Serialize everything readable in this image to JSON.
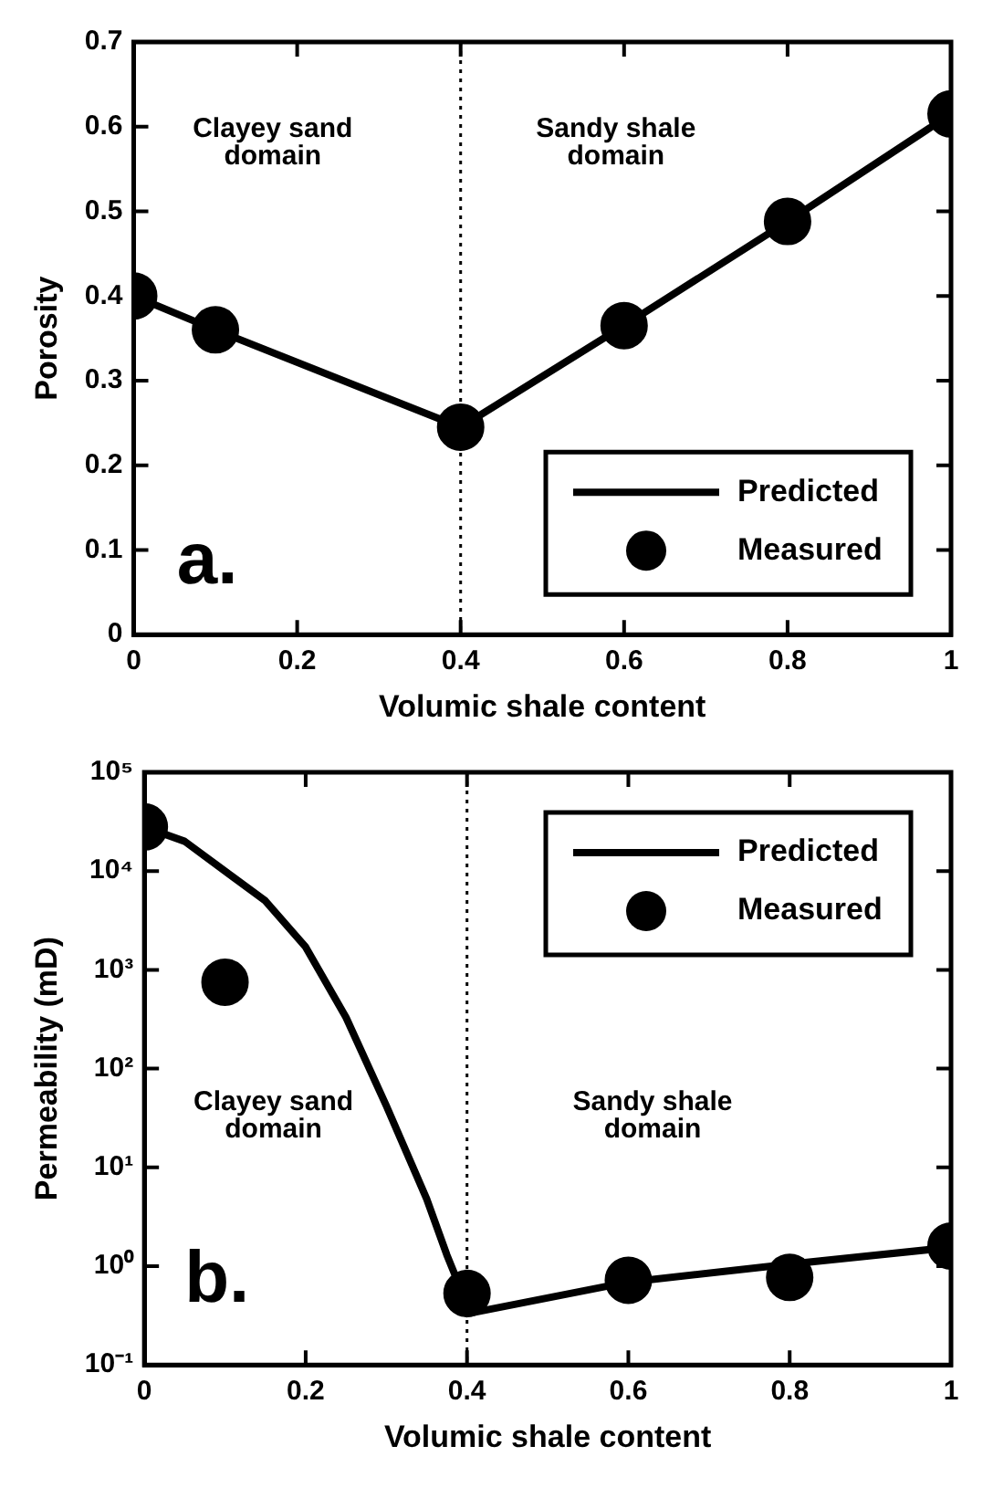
{
  "chart_data": [
    {
      "type": "line",
      "xlabel": "Volumic shale content",
      "ylabel": "Porosity",
      "xlim": [
        0,
        1
      ],
      "xticks": [
        0,
        0.2,
        0.4,
        0.6,
        0.8,
        1
      ],
      "ylim": [
        0,
        0.7
      ],
      "yticks": [
        0,
        0.1,
        0.2,
        0.3,
        0.4,
        0.5,
        0.6,
        0.7
      ],
      "grid": false,
      "legend": "bottom right",
      "series": [
        {
          "name": "Predicted",
          "type": "line",
          "color": "#000000",
          "marker": "none",
          "line_style": "solid",
          "x": [
            0,
            0.1,
            0.4,
            0.6,
            0.8,
            1
          ],
          "values": [
            0.4,
            0.36,
            0.245,
            0.365,
            0.488,
            0.615
          ]
        },
        {
          "name": "Measured",
          "type": "scatter",
          "color": "#000000",
          "marker": "circle",
          "x": [
            0,
            0.1,
            0.4,
            0.6,
            0.8,
            1
          ],
          "values": [
            0.4,
            0.36,
            0.245,
            0.365,
            0.488,
            0.615
          ]
        }
      ],
      "ref_lines": [
        {
          "axis": "x",
          "value": 0.4,
          "line_style": "dotted",
          "color": "#000000"
        }
      ],
      "annotations": [
        "Clayey sand domain",
        "Sandy shale domain",
        "a."
      ]
    },
    {
      "type": "line",
      "xlabel": "Volumic shale content",
      "ylabel": "Permeability (mD)",
      "log": "y",
      "xlim": [
        0,
        1
      ],
      "xticks": [
        0,
        0.2,
        0.4,
        0.6,
        0.8,
        1
      ],
      "ylim": [
        0.1,
        100000
      ],
      "yticks": [
        {
          "value": 0.1,
          "label": "10⁻¹"
        },
        {
          "value": 1,
          "label": "10⁰"
        },
        {
          "value": 10,
          "label": "10¹"
        },
        {
          "value": 100,
          "label": "10²"
        },
        {
          "value": 1000,
          "label": "10³"
        },
        {
          "value": 10000,
          "label": "10⁴"
        },
        {
          "value": 100000,
          "label": "10⁵"
        }
      ],
      "grid": false,
      "legend": "top right",
      "series": [
        {
          "name": "Predicted",
          "type": "line",
          "color": "#000000",
          "marker": "none",
          "line_style": "solid",
          "x": [
            0,
            0.05,
            0.1,
            0.15,
            0.2,
            0.25,
            0.3,
            0.35,
            0.375,
            0.39,
            0.4,
            0.6,
            0.8,
            1
          ],
          "values": [
            28000,
            20000,
            10000,
            5000,
            1700,
            330,
            42,
            4.8,
            1.3,
            0.65,
            0.33,
            0.69,
            1.05,
            1.55
          ]
        },
        {
          "name": "Measured",
          "type": "scatter",
          "color": "#000000",
          "marker": "circle",
          "x": [
            0,
            0.1,
            0.4,
            0.6,
            0.8,
            1
          ],
          "values": [
            28000,
            750,
            0.53,
            0.72,
            0.77,
            1.6
          ]
        }
      ],
      "ref_lines": [
        {
          "axis": "x",
          "value": 0.4,
          "line_style": "dotted",
          "color": "#000000"
        }
      ],
      "annotations": [
        "Clayey sand domain",
        "Sandy shale domain",
        "b."
      ]
    }
  ]
}
